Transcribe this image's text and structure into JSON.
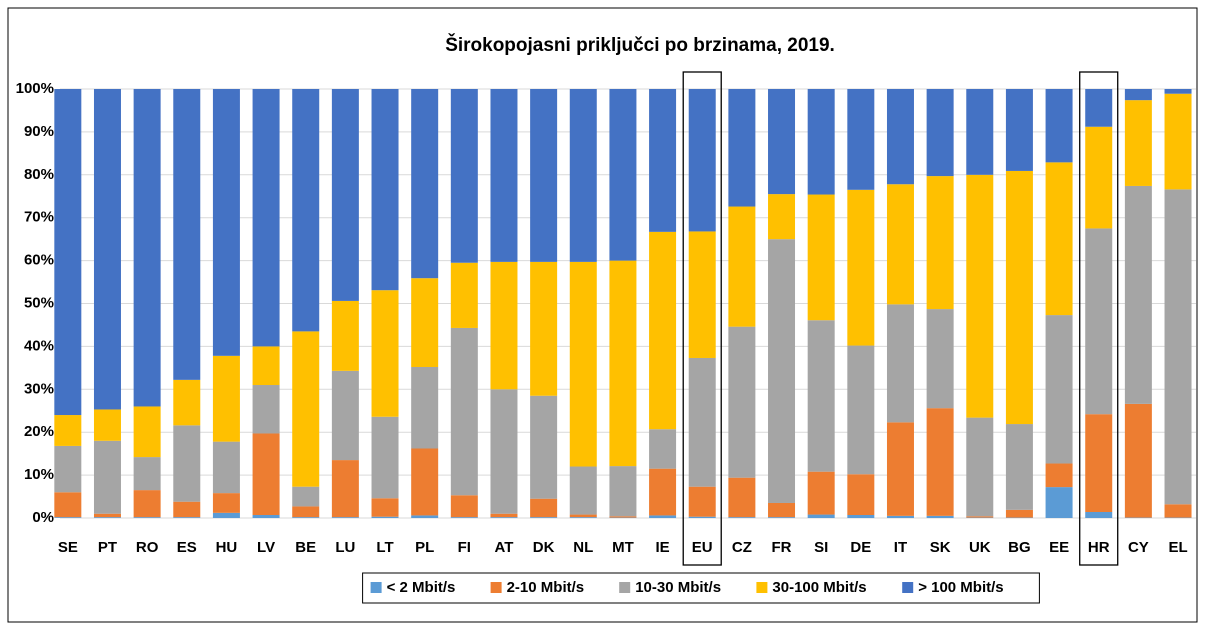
{
  "chart_data": {
    "type": "stacked_bar_100",
    "title": "Širokopojasni priključci po brzinama, 2019.",
    "categories": [
      "SE",
      "PT",
      "RO",
      "ES",
      "HU",
      "LV",
      "BE",
      "LU",
      "LT",
      "PL",
      "FI",
      "AT",
      "DK",
      "NL",
      "MT",
      "IE",
      "EU",
      "CZ",
      "FR",
      "SI",
      "DE",
      "IT",
      "SK",
      "UK",
      "BG",
      "EE",
      "HR",
      "CY",
      "EL"
    ],
    "highlight_categories": [
      "EU",
      "HR"
    ],
    "series": [
      {
        "name": "< 2 Mbit/s",
        "color": "#5b9bd5",
        "values": [
          0.2,
          0.2,
          0.2,
          0.2,
          1.2,
          0.7,
          0.2,
          0.2,
          0.3,
          0.6,
          0.2,
          0.2,
          0.2,
          0.2,
          0.1,
          0.6,
          0.3,
          0.2,
          0.2,
          0.8,
          0.7,
          0.5,
          0.5,
          0.1,
          0.1,
          7.2,
          1.4,
          0.1,
          0.1
        ]
      },
      {
        "name": "2-10 Mbit/s",
        "color": "#ed7d31",
        "values": [
          5.8,
          0.8,
          6.3,
          3.6,
          4.6,
          19,
          2.5,
          13.3,
          4.3,
          15.6,
          5.1,
          0.8,
          4.3,
          0.6,
          0.3,
          10.9,
          7,
          9.2,
          3.3,
          10,
          9.5,
          21.8,
          25.1,
          0.3,
          1.8,
          5.5,
          22.8,
          26.5,
          3.1
        ]
      },
      {
        "name": "10-30 Mbit/s",
        "color": "#a5a5a5",
        "values": [
          10.8,
          17,
          7.7,
          17.8,
          12,
          11.3,
          4.6,
          20.8,
          19,
          19,
          39,
          29,
          24,
          11.2,
          11.7,
          9.2,
          30,
          35.2,
          61.5,
          35.3,
          30,
          27.5,
          23.1,
          23,
          20,
          34.6,
          43.3,
          50.8,
          73.4
        ]
      },
      {
        "name": "30-100 Mbit/s",
        "color": "#ffc000",
        "values": [
          7.2,
          7.3,
          11.8,
          10.6,
          20,
          9,
          36.2,
          16.3,
          29.5,
          20.7,
          15.2,
          29.7,
          31.2,
          47.7,
          47.9,
          46,
          29.5,
          28,
          10.5,
          29.3,
          36.3,
          28,
          31,
          56.6,
          59,
          35.6,
          23.7,
          20,
          22.3
        ]
      },
      {
        "name": "> 100 Mbit/s",
        "color": "#4472c4",
        "values": [
          76,
          74.7,
          74,
          67.8,
          62.2,
          60,
          56.5,
          49.4,
          46.9,
          44.1,
          40.5,
          40.3,
          40.3,
          40.3,
          40,
          33.3,
          33.2,
          27.4,
          24.5,
          24.6,
          23.5,
          22.2,
          20.3,
          20,
          19.1,
          17.1,
          8.8,
          2.6,
          1.1
        ]
      }
    ],
    "ylim": [
      0,
      100
    ],
    "yticks": [
      {
        "value": 0,
        "label": "0%"
      },
      {
        "value": 10,
        "label": "10%"
      },
      {
        "value": 20,
        "label": "20%"
      },
      {
        "value": 30,
        "label": "30%"
      },
      {
        "value": 40,
        "label": "40%"
      },
      {
        "value": 50,
        "label": "50%"
      },
      {
        "value": 60,
        "label": "60%"
      },
      {
        "value": 70,
        "label": "70%"
      },
      {
        "value": 80,
        "label": "80%"
      },
      {
        "value": 90,
        "label": "90%"
      },
      {
        "value": 100,
        "label": "100%"
      }
    ],
    "grid": true,
    "legend": "bottom"
  }
}
